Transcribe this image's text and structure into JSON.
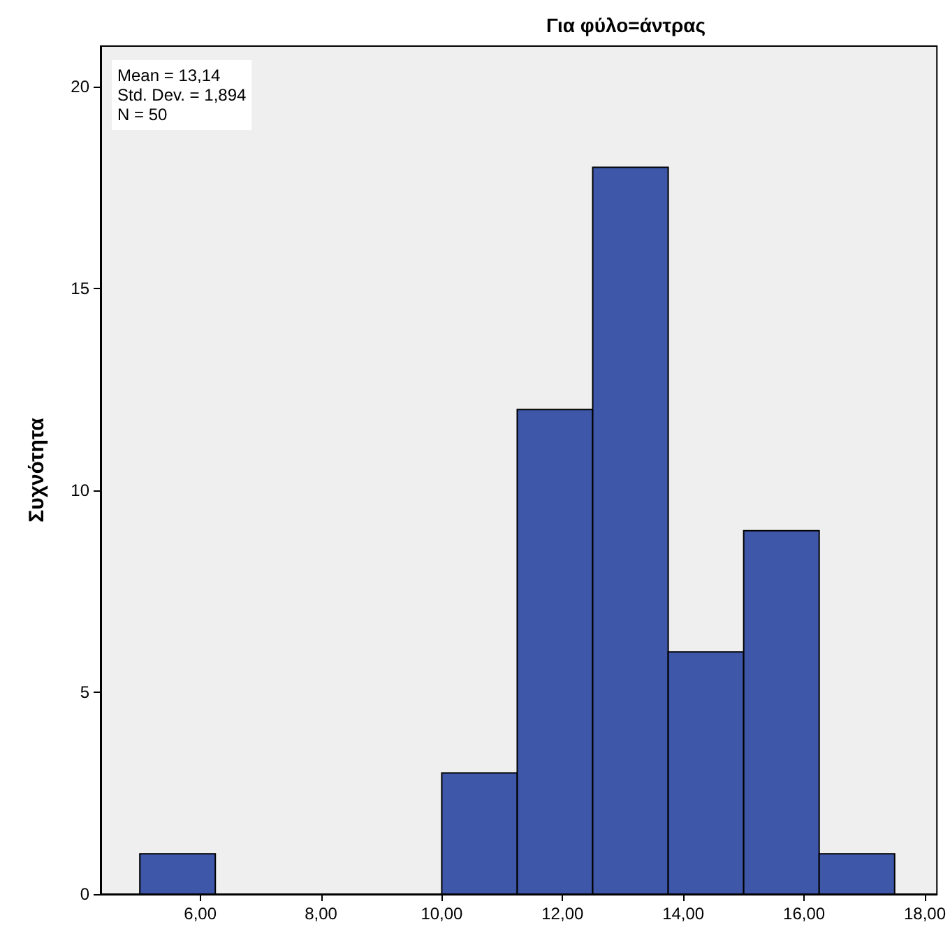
{
  "chart_data": {
    "type": "histogram",
    "title": "Για φύλο=άντρας",
    "ylabel": "Συχνότητα",
    "bins": [
      5,
      6.25,
      7.5,
      8.75,
      10,
      11.25,
      12.5,
      13.75,
      15,
      16.25,
      17.5
    ],
    "values": [
      1,
      0,
      0,
      0,
      3,
      12,
      18,
      6,
      9,
      1
    ],
    "color": "#3e57a8",
    "xlim": [
      4.35,
      18.2
    ],
    "xticks": [
      {
        "value": 6,
        "label": "6,00"
      },
      {
        "value": 8,
        "label": "8,00"
      },
      {
        "value": 10,
        "label": "10,00"
      },
      {
        "value": 12,
        "label": "12,00"
      },
      {
        "value": 14,
        "label": "14,00"
      },
      {
        "value": 16,
        "label": "16,00"
      },
      {
        "value": 18,
        "label": "18,00"
      }
    ],
    "ylim": [
      0,
      21
    ],
    "yticks": [
      0,
      5,
      10,
      15,
      20
    ],
    "grid": false,
    "annotations": [
      "Mean = 13,14",
      "Std. Dev. = 1,894",
      "N = 50"
    ]
  }
}
